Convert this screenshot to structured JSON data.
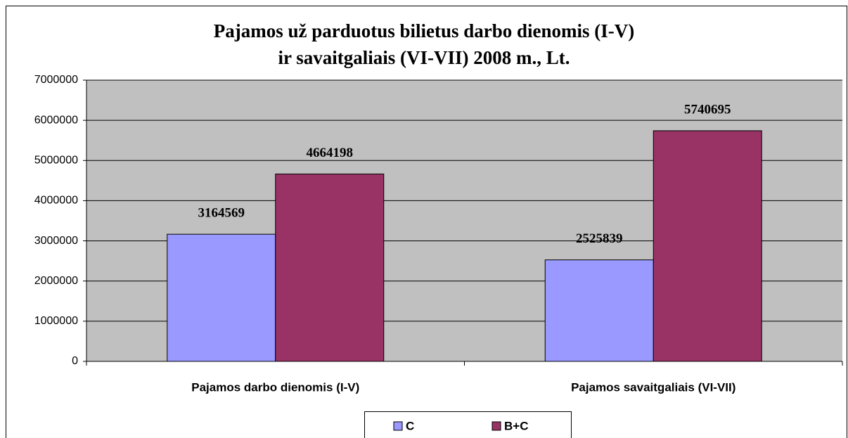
{
  "chart_data": {
    "type": "bar",
    "title": [
      "Pajamos už parduotus bilietus darbo dienomis (I-V)",
      "ir savaitgaliais (VI-VII) 2008 m., Lt."
    ],
    "categories": [
      "Pajamos darbo dienomis (I-V)",
      "Pajamos savaitgaliais (VI-VII)"
    ],
    "series": [
      {
        "name": "C",
        "color": "#9999ff",
        "values": [
          3164569,
          2525839
        ]
      },
      {
        "name": "B+C",
        "color": "#993366",
        "values": [
          4664198,
          5740695
        ]
      }
    ],
    "ylim": [
      0,
      7000000
    ],
    "yticks": [
      0,
      1000000,
      2000000,
      3000000,
      4000000,
      5000000,
      6000000,
      7000000
    ],
    "grid": true,
    "legend": "bottom"
  }
}
